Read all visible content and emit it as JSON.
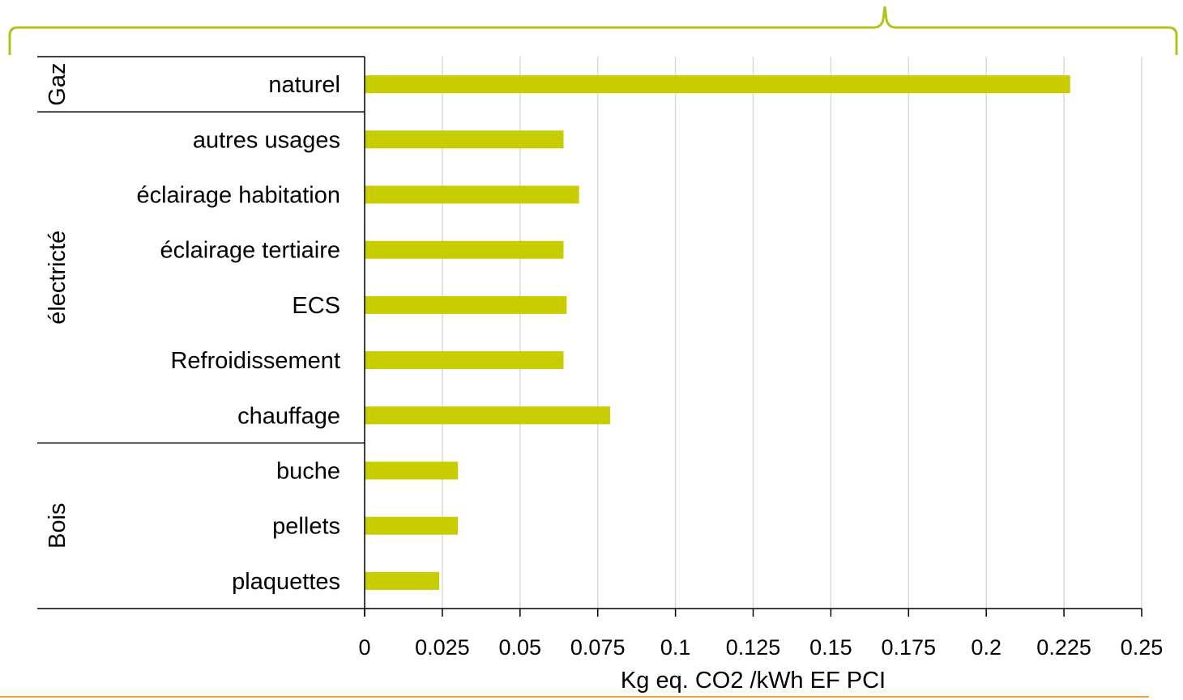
{
  "chart_data": {
    "type": "bar",
    "orientation": "horizontal",
    "xlabel": "Kg eq. CO2 /kWh EF PCI",
    "xlim": [
      0,
      0.25
    ],
    "xticks": [
      "0",
      "0.025",
      "0.05",
      "0.075",
      "0.1",
      "0.125",
      "0.15",
      "0.175",
      "0.2",
      "0.225",
      "0.25"
    ],
    "grid": "vertical",
    "bar_color": "#c8cd00",
    "categories": [
      "naturel",
      "autres usages",
      "éclairage habitation",
      "éclairage tertiaire",
      "ECS",
      "Refroidissement",
      "chauffage",
      "buche",
      "pellets",
      "plaquettes"
    ],
    "values": [
      0.227,
      0.064,
      0.069,
      0.064,
      0.065,
      0.064,
      0.079,
      0.03,
      0.03,
      0.024
    ],
    "groups": [
      {
        "name": "Gaz",
        "count": 1
      },
      {
        "name": "électricté",
        "count": 6
      },
      {
        "name": "Bois",
        "count": 3
      }
    ]
  },
  "decor": {
    "brace_color": "#b3c21a",
    "bottom_rule_color": "#e8a33d"
  }
}
